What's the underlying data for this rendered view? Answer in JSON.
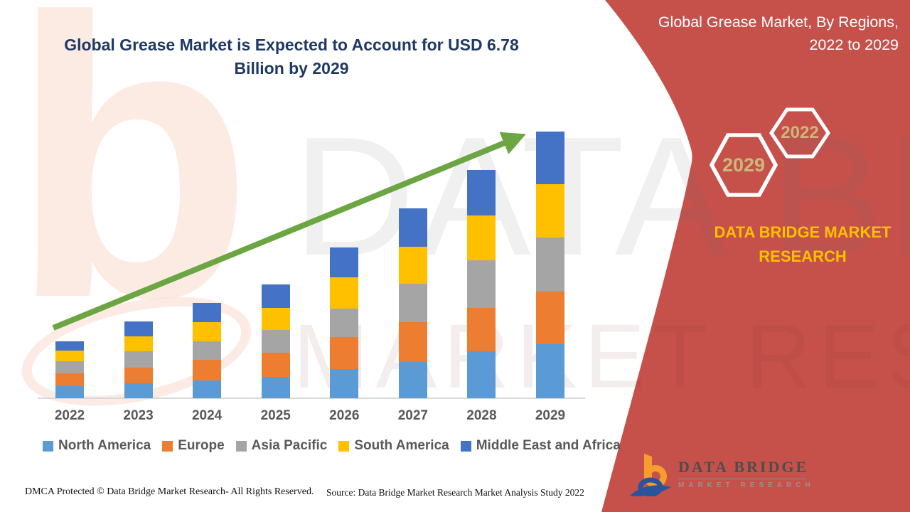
{
  "header": {
    "title_lines": [
      "Global Grease Market is Expected to Account for USD 6.78",
      "Billion by 2029"
    ],
    "title_color": "#1F3864"
  },
  "side_panel": {
    "title_lines": [
      "Global Grease Market, By Regions,",
      "2022 to 2029"
    ],
    "hexagons": [
      {
        "label": "2029"
      },
      {
        "label": "2022"
      }
    ],
    "brand_lines": [
      "DATA BRIDGE MARKET",
      "RESEARCH"
    ],
    "panel_color": "#C6514B",
    "brand_text_color": "#FFC000",
    "hexagon_label_color": "#C9B97C"
  },
  "chart_data": {
    "type": "bar",
    "stacked": true,
    "title": "Global Grease Market is Expected to Account for USD 6.78 Billion by 2029",
    "value_unit": "USD Billion (segment values estimated from bar heights; 2029 total anchored to 6.78)",
    "categories": [
      "2022",
      "2023",
      "2024",
      "2025",
      "2026",
      "2027",
      "2028",
      "2029"
    ],
    "series": [
      {
        "name": "North America",
        "color": "#5B9BD5",
        "values": [
          0.31,
          0.38,
          0.46,
          0.55,
          0.74,
          0.93,
          1.19,
          1.37
        ]
      },
      {
        "name": "Europe",
        "color": "#ED7D31",
        "values": [
          0.33,
          0.4,
          0.52,
          0.6,
          0.82,
          1.01,
          1.11,
          1.34
        ]
      },
      {
        "name": "Asia Pacific",
        "color": "#A5A5A5",
        "values": [
          0.3,
          0.42,
          0.46,
          0.58,
          0.72,
          0.98,
          1.21,
          1.37
        ]
      },
      {
        "name": "South America",
        "color": "#FFC000",
        "values": [
          0.27,
          0.38,
          0.5,
          0.56,
          0.8,
          0.93,
          1.14,
          1.37
        ]
      },
      {
        "name": "Middle East and Africa",
        "color": "#4472C4",
        "values": [
          0.24,
          0.37,
          0.48,
          0.61,
          0.76,
          0.98,
          1.15,
          1.33
        ]
      }
    ],
    "totals": [
      1.45,
      1.95,
      2.42,
      2.9,
      3.84,
      4.83,
      5.8,
      6.78
    ],
    "ylim": [
      0,
      7
    ],
    "grid": false,
    "y_axis_visible": false,
    "legend_position": "bottom",
    "axis_line_color": "#D9D9D9",
    "tick_label_color": "#595959",
    "trend_arrow": {
      "present": true,
      "color": "#6CA642"
    }
  },
  "footer": {
    "dmca": "DMCA Protected © Data Bridge Market Research- All Rights Reserved.",
    "source": "Source: Data Bridge Market Research Market Analysis Study 2022"
  },
  "logo": {
    "name": "DATA BRIDGE",
    "subtitle": "MARKET RESEARCH"
  },
  "watermark": {
    "letter": "b",
    "line1": "DATA BRIDGE",
    "line2": "MARKET RESEARCH"
  }
}
